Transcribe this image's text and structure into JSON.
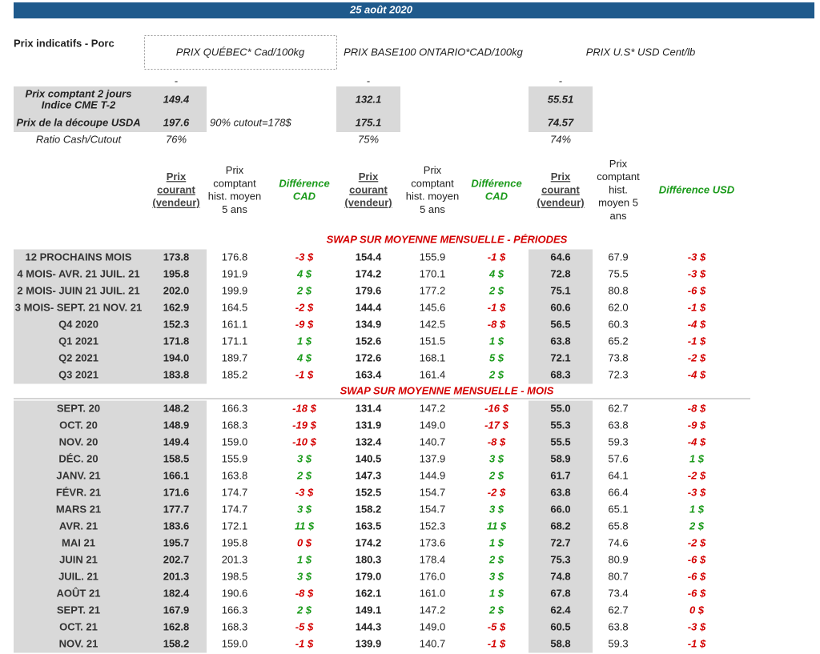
{
  "header": {
    "date": "25 août 2020",
    "title": "Prix indicatifs - Porc",
    "markets": [
      "PRIX QUÉBEC* Cad/100kg",
      "PRIX BASE100 ONTARIO*CAD/100kg",
      "PRIX U.S* USD Cent/lb"
    ],
    "dashes": [
      "-",
      "-",
      "-"
    ]
  },
  "summary": {
    "rows": [
      {
        "label": [
          "Prix comptant 2 jours",
          "Indice CME T-2"
        ],
        "values": [
          "149.4",
          "132.1",
          "55.51"
        ]
      },
      {
        "label": [
          "Prix de la découpe USDA"
        ],
        "values": [
          "197.6",
          "175.1",
          "74.57"
        ],
        "note": "90% cutout=178$"
      },
      {
        "label": [
          "Ratio Cash/Cutout"
        ],
        "values": [
          "76%",
          "75%",
          "74%"
        ]
      }
    ]
  },
  "columns": [
    [
      "Prix",
      "courant",
      "(vendeur)"
    ],
    [
      "Prix",
      "comptant",
      "hist. moyen",
      "5 ans"
    ],
    [
      "Différence",
      "CAD"
    ],
    [
      "Prix",
      "courant",
      "(vendeur)"
    ],
    [
      "Prix",
      "comptant",
      "hist. moyen",
      "5 ans"
    ],
    [
      "Différence",
      "CAD"
    ],
    [
      "Prix",
      "courant",
      "(vendeur)"
    ],
    [
      "Prix",
      "comptant",
      "hist.",
      "moyen 5",
      "ans"
    ],
    [
      "Différence USD"
    ]
  ],
  "sections": [
    {
      "title": "SWAP SUR MOYENNE MENSUELLE - PÉRIODES",
      "rows": [
        [
          "12 PROCHAINS MOIS",
          "173.8",
          "176.8",
          "-3 $",
          "154.4",
          "155.9",
          "-1 $",
          "64.6",
          "67.9",
          "-3 $"
        ],
        [
          "4 MOIS- AVR. 21 JUIL. 21",
          "195.8",
          "191.9",
          "4 $",
          "174.2",
          "170.1",
          "4 $",
          "72.8",
          "75.5",
          "-3 $"
        ],
        [
          "2 MOIS- JUIN 21 JUIL. 21",
          "202.0",
          "199.9",
          "2 $",
          "179.6",
          "177.2",
          "2 $",
          "75.1",
          "80.8",
          "-6 $"
        ],
        [
          "3 MOIS- SEPT. 21 NOV. 21",
          "162.9",
          "164.5",
          "-2 $",
          "144.4",
          "145.6",
          "-1 $",
          "60.6",
          "62.0",
          "-1 $"
        ],
        [
          "Q4 2020",
          "152.3",
          "161.1",
          "-9 $",
          "134.9",
          "142.5",
          "-8 $",
          "56.5",
          "60.3",
          "-4 $"
        ],
        [
          "Q1 2021",
          "171.8",
          "171.1",
          "1 $",
          "152.6",
          "151.5",
          "1 $",
          "63.8",
          "65.2",
          "-1 $"
        ],
        [
          "Q2 2021",
          "194.0",
          "189.7",
          "4 $",
          "172.6",
          "168.1",
          "5 $",
          "72.1",
          "73.8",
          "-2 $"
        ],
        [
          "Q3 2021",
          "183.8",
          "185.2",
          "-1 $",
          "163.4",
          "161.4",
          "2 $",
          "68.3",
          "72.3",
          "-4 $"
        ]
      ]
    },
    {
      "title": "SWAP SUR MOYENNE MENSUELLE - MOIS",
      "rows": [
        [
          "SEPT. 20",
          "148.2",
          "166.3",
          "-18 $",
          "131.4",
          "147.2",
          "-16 $",
          "55.0",
          "62.7",
          "-8 $"
        ],
        [
          "OCT. 20",
          "148.9",
          "168.3",
          "-19 $",
          "131.9",
          "149.0",
          "-17 $",
          "55.3",
          "63.8",
          "-9 $"
        ],
        [
          "NOV. 20",
          "149.4",
          "159.0",
          "-10 $",
          "132.4",
          "140.7",
          "-8 $",
          "55.5",
          "59.3",
          "-4 $"
        ],
        [
          "DÉC. 20",
          "158.5",
          "155.9",
          "3 $",
          "140.5",
          "137.9",
          "3 $",
          "58.9",
          "57.6",
          "1 $"
        ],
        [
          "JANV. 21",
          "166.1",
          "163.8",
          "2 $",
          "147.3",
          "144.9",
          "2 $",
          "61.7",
          "64.1",
          "-2 $"
        ],
        [
          "FÉVR. 21",
          "171.6",
          "174.7",
          "-3 $",
          "152.5",
          "154.7",
          "-2 $",
          "63.8",
          "66.4",
          "-3 $"
        ],
        [
          "MARS 21",
          "177.7",
          "174.7",
          "3 $",
          "158.2",
          "154.7",
          "3 $",
          "66.0",
          "65.1",
          "1 $"
        ],
        [
          "AVR. 21",
          "183.6",
          "172.1",
          "11 $",
          "163.5",
          "152.3",
          "11 $",
          "68.2",
          "65.8",
          "2 $"
        ],
        [
          "MAI 21",
          "195.7",
          "195.8",
          "0 $",
          "174.2",
          "173.6",
          "1 $",
          "72.7",
          "74.6",
          "-2 $"
        ],
        [
          "JUIN 21",
          "202.7",
          "201.3",
          "1 $",
          "180.3",
          "178.4",
          "2 $",
          "75.3",
          "80.9",
          "-6 $"
        ],
        [
          "JUIL. 21",
          "201.3",
          "198.5",
          "3 $",
          "179.0",
          "176.0",
          "3 $",
          "74.8",
          "80.7",
          "-6 $"
        ],
        [
          "AOÛT 21",
          "182.4",
          "190.6",
          "-8 $",
          "162.1",
          "161.0",
          "1 $",
          "67.8",
          "73.4",
          "-6 $"
        ],
        [
          "SEPT. 21",
          "167.9",
          "166.3",
          "2 $",
          "149.1",
          "147.2",
          "2 $",
          "62.4",
          "62.7",
          "0 $"
        ],
        [
          "OCT. 21",
          "162.8",
          "168.3",
          "-5 $",
          "144.3",
          "149.0",
          "-5 $",
          "60.5",
          "63.8",
          "-3 $"
        ],
        [
          "NOV. 21",
          "158.2",
          "159.0",
          "-1 $",
          "139.9",
          "140.7",
          "-1 $",
          "58.8",
          "59.3",
          "-1 $"
        ]
      ]
    }
  ]
}
